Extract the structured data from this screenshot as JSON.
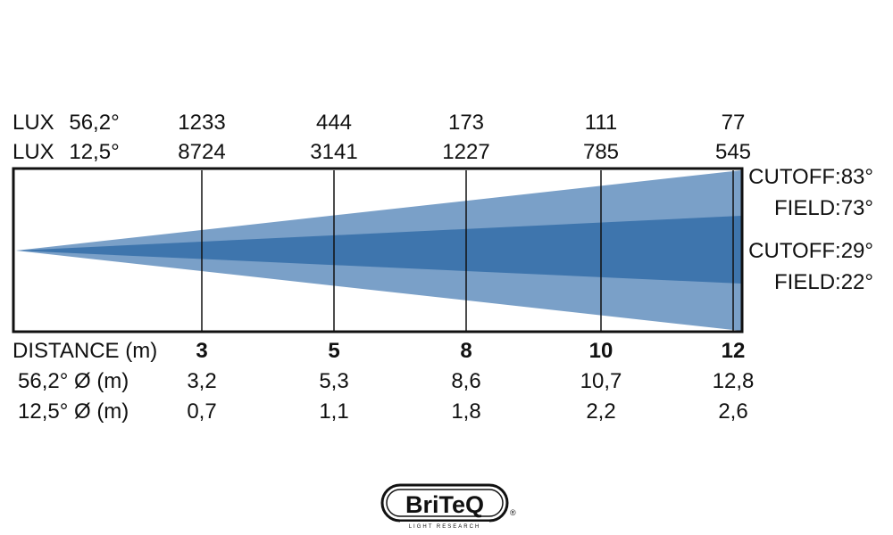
{
  "lux_rows": [
    {
      "label": "LUX",
      "angle": "56,2°",
      "values": [
        "1233",
        "444",
        "173",
        "111",
        "77"
      ]
    },
    {
      "label": "LUX",
      "angle": "12,5°",
      "values": [
        "8724",
        "3141",
        "1227",
        "785",
        "545"
      ]
    }
  ],
  "distance_row": {
    "label": "DISTANCE (m)",
    "values": [
      "3",
      "5",
      "8",
      "10",
      "12"
    ]
  },
  "diameter_rows": [
    {
      "label": "56,2° Ø (m)",
      "values": [
        "3,2",
        "5,3",
        "8,6",
        "10,7",
        "12,8"
      ]
    },
    {
      "label": "12,5° Ø (m)",
      "values": [
        "0,7",
        "1,1",
        "1,8",
        "2,2",
        "2,6"
      ]
    }
  ],
  "beam_labels": {
    "wide_cutoff": "CUTOFF:83°",
    "wide_field": "FIELD:73°",
    "narrow_cutoff": "CUTOFF:29°",
    "narrow_field": "FIELD:22°"
  },
  "colors": {
    "outer_beam": "#7aa0c8",
    "inner_beam": "#3e75ad",
    "frame": "#111111"
  },
  "logo": {
    "brand": "BriTeQ",
    "tagline": "LIGHT RESEARCH",
    "registered": "®"
  }
}
